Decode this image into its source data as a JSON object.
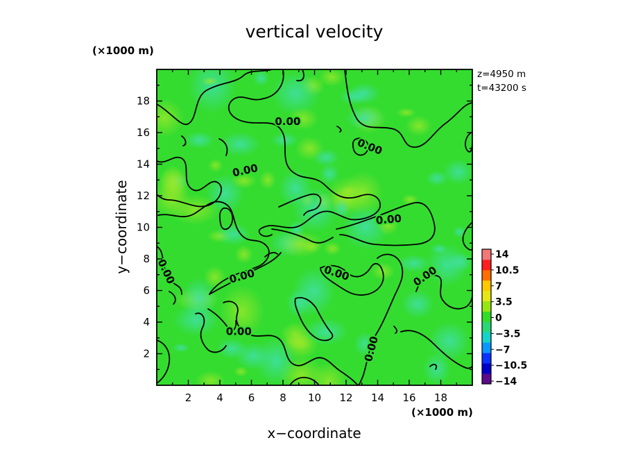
{
  "chart_data": {
    "type": "heatmap",
    "title": "vertical velocity",
    "xlabel": "x−coordinate",
    "ylabel": "y−coordinate",
    "x_unit": "(×1000 m)",
    "y_unit": "(×1000 m)",
    "xlim": [
      0,
      20
    ],
    "ylim": [
      0,
      20
    ],
    "x_ticks": [
      "2",
      "4",
      "6",
      "8",
      "10",
      "12",
      "14",
      "16",
      "18"
    ],
    "y_ticks": [
      "2",
      "4",
      "6",
      "8",
      "10",
      "12",
      "14",
      "16",
      "18"
    ],
    "info": {
      "z": "z=4950  m",
      "t": "t=43200  s"
    },
    "colorbar": {
      "ticks": [
        "14",
        "10.5",
        "7",
        "3.5",
        "0",
        "−3.5",
        "−7",
        "−10.5",
        "−14"
      ],
      "vmin": -14,
      "vmax": 14,
      "colors": [
        "#5a0a8a",
        "#0000c8",
        "#0a32ff",
        "#0a96ff",
        "#14d2c8",
        "#28d778",
        "#32dc28",
        "#96e614",
        "#e6e614",
        "#ffc800",
        "#ff6e00",
        "#ff1e1e",
        "#f07878"
      ]
    },
    "contour_labels": [
      {
        "text": "0.00",
        "x": 8.3,
        "y": 16.7,
        "angle": 0
      },
      {
        "text": "0.00",
        "x": 13.5,
        "y": 15.1,
        "angle": 22
      },
      {
        "text": "0.00",
        "x": 5.6,
        "y": 13.6,
        "angle": -12
      },
      {
        "text": "0.00",
        "x": 14.7,
        "y": 10.5,
        "angle": -5
      },
      {
        "text": "0.00",
        "x": 0.6,
        "y": 7.2,
        "angle": 65
      },
      {
        "text": "0.00",
        "x": 5.4,
        "y": 6.9,
        "angle": -16
      },
      {
        "text": "0.00",
        "x": 11.4,
        "y": 7.1,
        "angle": 18
      },
      {
        "text": "0.00",
        "x": 17.0,
        "y": 6.9,
        "angle": -35
      },
      {
        "text": "0.00",
        "x": 5.2,
        "y": 3.4,
        "angle": 0
      },
      {
        "text": "0.00",
        "x": 13.6,
        "y": 2.3,
        "angle": -75
      }
    ]
  }
}
